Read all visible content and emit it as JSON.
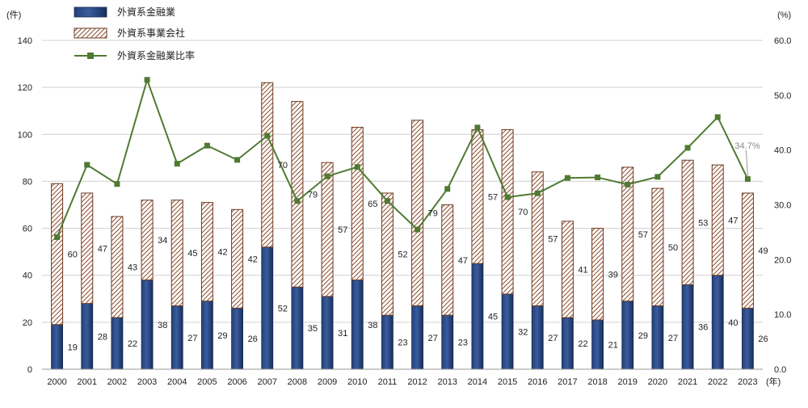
{
  "chart_data": {
    "type": "bar",
    "subtype": "stacked bar with line on secondary axis",
    "categories": [
      "2000",
      "2001",
      "2002",
      "2003",
      "2004",
      "2005",
      "2006",
      "2007",
      "2008",
      "2009",
      "2010",
      "2011",
      "2012",
      "2013",
      "2014",
      "2015",
      "2016",
      "2017",
      "2018",
      "2019",
      "2020",
      "2021",
      "2022",
      "2023"
    ],
    "series": [
      {
        "name": "外資系金融業",
        "kind": "bar",
        "axis": "left",
        "color": "#1f3a6e",
        "values": [
          19,
          28,
          22,
          38,
          27,
          29,
          26,
          52,
          35,
          31,
          38,
          23,
          27,
          23,
          45,
          32,
          27,
          22,
          21,
          29,
          27,
          36,
          40,
          26
        ]
      },
      {
        "name": "外資系事業会社",
        "kind": "bar",
        "axis": "left",
        "color": "#8b4a2b",
        "pattern": "diagonal-hatch",
        "values": [
          60,
          47,
          43,
          34,
          45,
          42,
          42,
          70,
          79,
          57,
          65,
          52,
          79,
          47,
          57,
          70,
          57,
          41,
          39,
          57,
          50,
          53,
          47,
          49
        ]
      },
      {
        "name": "外資系金融業比率",
        "kind": "line",
        "axis": "right",
        "color": "#4f7a32",
        "values": [
          24.1,
          37.3,
          33.8,
          52.8,
          37.5,
          40.8,
          38.2,
          42.6,
          30.7,
          35.2,
          36.9,
          30.7,
          25.5,
          32.9,
          44.1,
          31.4,
          32.1,
          34.9,
          35.0,
          33.7,
          35.1,
          40.4,
          46.0,
          34.7
        ]
      }
    ],
    "annotation": "34.7%",
    "y_left": {
      "unit": "(件)",
      "ylim": [
        0,
        140
      ],
      "ticks": [
        "0",
        "20",
        "40",
        "60",
        "80",
        "100",
        "120",
        "140"
      ]
    },
    "y_right": {
      "unit": "(%)",
      "ylim": [
        0,
        60
      ],
      "ticks": [
        "0.0",
        "10.0",
        "20.0",
        "30.0",
        "40.0",
        "50.0",
        "60.0"
      ]
    },
    "x_unit": "(年)",
    "grid": true,
    "legend_position": "top-left"
  }
}
